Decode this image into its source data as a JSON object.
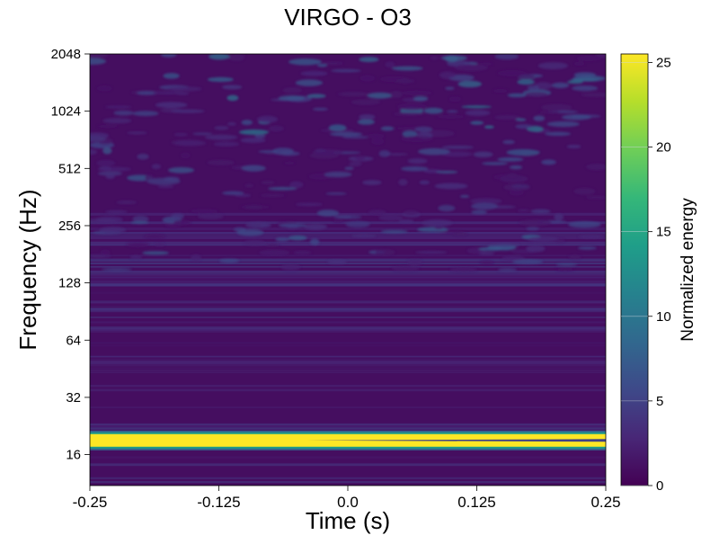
{
  "chart_data": {
    "type": "heatmap",
    "title": "VIRGO - O3",
    "xlabel": "Time (s)",
    "ylabel": "Frequency (Hz)",
    "xlim": [
      -0.25,
      0.25
    ],
    "ylim": [
      11,
      2048
    ],
    "yscale": "log2",
    "xticks": [
      "-0.25",
      "-0.125",
      "0.0",
      "0.125",
      "0.25"
    ],
    "xtick_values": [
      -0.25,
      -0.125,
      0.0,
      0.125,
      0.25
    ],
    "yticks": [
      "16",
      "32",
      "64",
      "128",
      "256",
      "512",
      "1024",
      "2048"
    ],
    "ytick_values": [
      16,
      32,
      64,
      128,
      256,
      512,
      1024,
      2048
    ],
    "grid": false,
    "colormap": "viridis",
    "colorbar": {
      "label": "Normalized energy",
      "range": [
        0,
        25.5
      ],
      "ticks": [
        "0",
        "5",
        "10",
        "15",
        "20",
        "25"
      ],
      "tick_values": [
        0,
        5,
        10,
        15,
        20,
        25
      ]
    },
    "features": [
      {
        "description": "saturated band",
        "frequency_hz": 19,
        "time_range": [
          -0.25,
          0.25
        ],
        "energy": 25.5
      },
      {
        "description": "low energy background",
        "frequency_range_hz": [
          11,
          2048
        ],
        "energy": 1.0
      }
    ]
  },
  "colors": {
    "background": "#ffffff",
    "cmap_low": "#440154",
    "cmap_high": "#fde725"
  }
}
